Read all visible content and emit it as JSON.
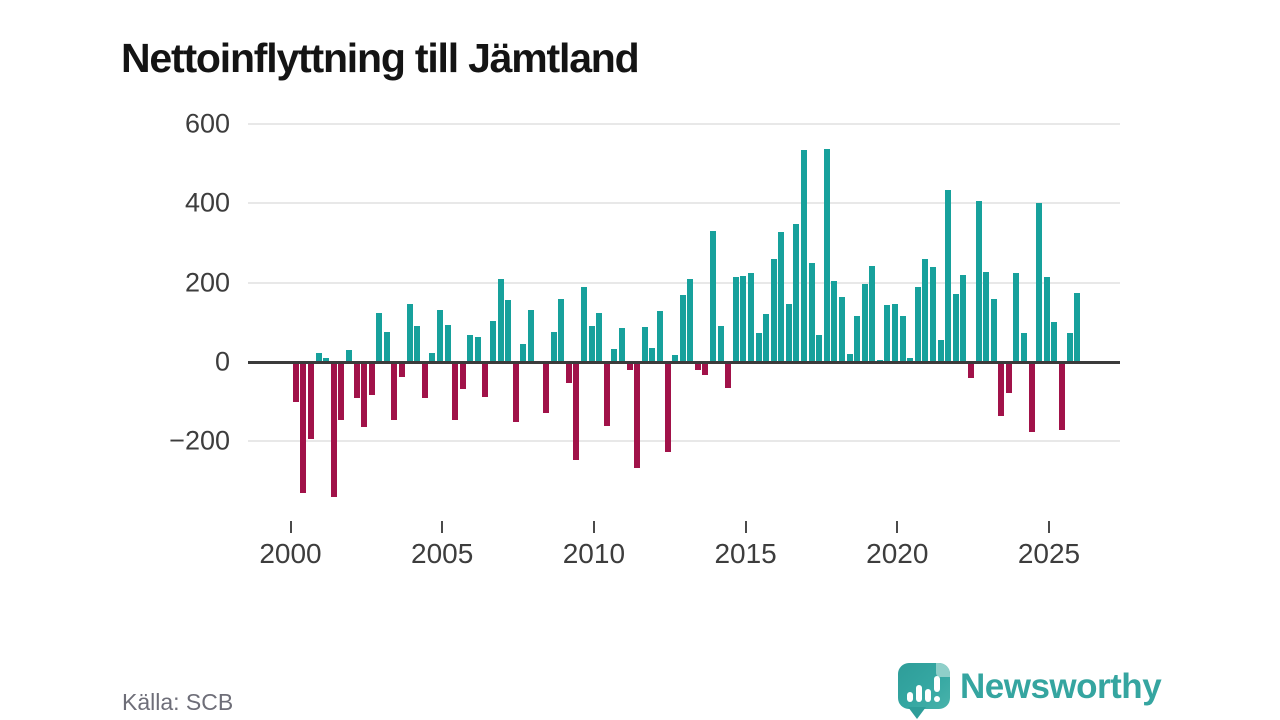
{
  "title": "Nettoinflyttning till Jämtland",
  "source": "Källa: SCB",
  "brand": {
    "name": "Newsworthy",
    "color": "#35a5a0"
  },
  "chart_data": {
    "type": "bar",
    "title": "Nettoinflyttning till Jämtland",
    "frequency": "quarterly",
    "start_year": 2000,
    "end_period": "2025 Q4",
    "xlabel": "",
    "ylabel": "",
    "ylim": [
      -400,
      640
    ],
    "grid": "horizontal",
    "y_ticks": [
      600,
      400,
      200,
      0,
      -200
    ],
    "y_tick_labels": [
      "600",
      "400",
      "200",
      "0",
      "−200"
    ],
    "x_tick_years": [
      2000,
      2005,
      2010,
      2015,
      2020,
      2025
    ],
    "x_tick_labels": [
      "2000",
      "2005",
      "2010",
      "2015",
      "2020",
      "2025"
    ],
    "positive_color": "#17a19c",
    "negative_color": "#a11249",
    "values": [
      -100,
      -330,
      -195,
      22,
      10,
      -340,
      -145,
      30,
      -90,
      -165,
      -82,
      123,
      76,
      -145,
      -37,
      147,
      90,
      -91,
      23,
      132,
      93,
      -145,
      -68,
      68,
      64,
      -87,
      103,
      209,
      157,
      -150,
      45,
      130,
      -5,
      -128,
      77,
      160,
      -53,
      -246,
      188,
      91,
      123,
      -160,
      33,
      87,
      -19,
      -266,
      89,
      35,
      129,
      -228,
      19,
      168,
      210,
      -19,
      -32,
      331,
      91,
      -65,
      214,
      216,
      224,
      73,
      122,
      259,
      329,
      147,
      348,
      534,
      251,
      69,
      538,
      205,
      163,
      21,
      117,
      197,
      241,
      5,
      143,
      147,
      116,
      11,
      188,
      259,
      239,
      56,
      435,
      171,
      220,
      -39,
      407,
      227,
      158,
      -137,
      -77,
      224,
      74,
      -177,
      402,
      214,
      102,
      -172,
      72,
      174
    ]
  }
}
